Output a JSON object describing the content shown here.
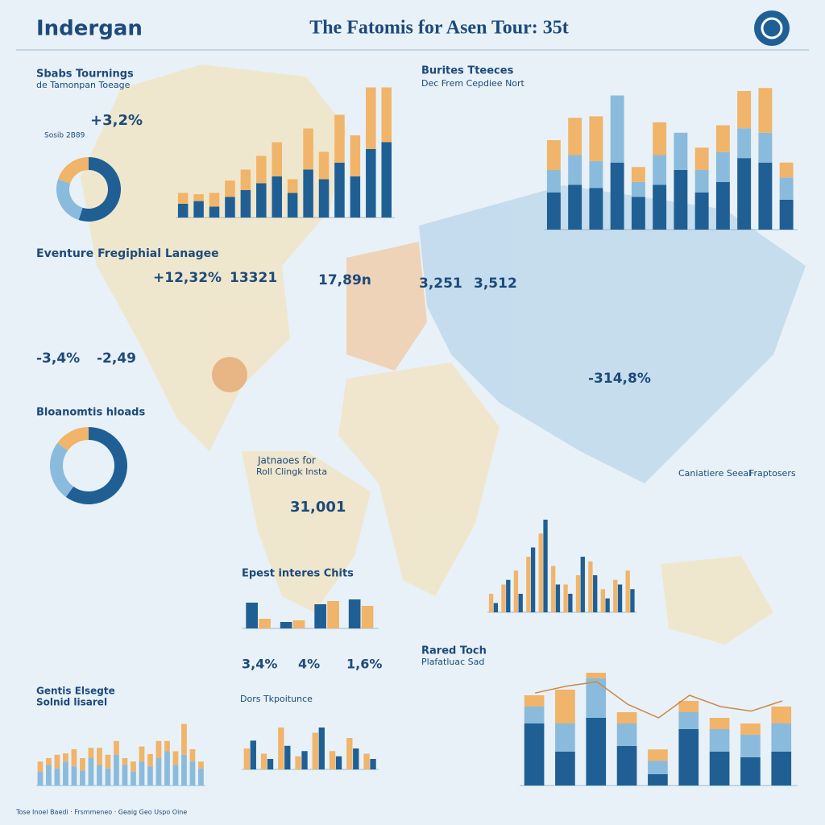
{
  "header": {
    "brand": "Indergan",
    "title": "The Fatomis for Asen Tour: 35t"
  },
  "labels": [
    "Sbabs Tournings",
    "de Tamonpan Toeage",
    "+3,2%",
    "Sosib 2B89",
    "Burites Tteeces",
    "Dec Frem Cepdiee Nort",
    "Eventure Fregiphial Lanagee",
    "+12,32%",
    "13321",
    "17,89n",
    "3,251",
    "3,512",
    "-3,4%",
    "-2,49",
    "Bloanomtis hloads",
    "Jatnaoes for",
    "Roll Clingk Insta",
    "31,001",
    "-314,8%",
    "Epest interes Chits",
    "3,4%",
    "4%",
    "1,6%",
    "Gentis Elsegte",
    "Solnid lisarel",
    "Rared Toch",
    "Plafatluac Sad",
    "Caniatiere Seeal",
    "Fraptosers",
    "Dors Tkpoitunce",
    "Tose Inoel Baedi · Frsmmeneo · Geaig Geo Uspo Oine"
  ],
  "charts": [
    {
      "type": "bar",
      "stacked": true,
      "ylim": [
        0,
        100
      ],
      "series": [
        {
          "color": "#1f5f94",
          "values": [
            10,
            12,
            8,
            15,
            20,
            25,
            30,
            18,
            35,
            28,
            40,
            30,
            50,
            55
          ]
        },
        {
          "color": "#f0b46a",
          "values": [
            8,
            5,
            10,
            12,
            15,
            20,
            25,
            10,
            30,
            20,
            35,
            30,
            45,
            40
          ]
        }
      ]
    },
    {
      "type": "bar",
      "stacked": true,
      "ylim": [
        0,
        100
      ],
      "series": [
        {
          "color": "#1f5f94",
          "values": [
            25,
            30,
            28,
            45,
            22,
            30,
            40,
            25,
            32,
            48,
            45,
            20
          ]
        },
        {
          "color": "#8bbbdc",
          "values": [
            15,
            20,
            18,
            45,
            10,
            20,
            25,
            15,
            20,
            20,
            20,
            15
          ]
        },
        {
          "color": "#f0b46a",
          "values": [
            20,
            25,
            30,
            0,
            10,
            22,
            0,
            15,
            18,
            25,
            30,
            10
          ]
        }
      ]
    },
    {
      "type": "bar",
      "stacked": false,
      "ylim": [
        0,
        100
      ],
      "series": [
        {
          "color": "#f0b46a",
          "values": [
            20,
            30,
            45,
            60,
            85,
            50,
            30,
            40,
            55,
            25,
            35,
            45
          ]
        },
        {
          "color": "#1f5f94",
          "values": [
            10,
            35,
            20,
            70,
            100,
            30,
            20,
            60,
            40,
            15,
            30,
            25
          ]
        }
      ]
    },
    {
      "type": "bar",
      "stacked": true,
      "ylim": [
        0,
        100
      ],
      "series": [
        {
          "color": "#8bbbdc",
          "values": [
            20,
            30,
            25,
            35,
            28,
            22,
            40,
            30,
            25,
            45,
            30,
            20,
            35,
            28,
            40,
            50,
            30,
            45,
            35,
            25
          ]
        },
        {
          "color": "#f0b46a",
          "values": [
            15,
            10,
            20,
            12,
            25,
            18,
            15,
            25,
            20,
            20,
            10,
            15,
            22,
            18,
            25,
            15,
            20,
            45,
            18,
            10
          ]
        }
      ]
    },
    {
      "type": "bar",
      "stacked": true,
      "ylim": [
        0,
        100
      ],
      "series": [
        {
          "color": "#1f5f94",
          "values": [
            55,
            30,
            60,
            35,
            10,
            50,
            30,
            25,
            30
          ]
        },
        {
          "color": "#8bbbdc",
          "values": [
            15,
            25,
            35,
            20,
            12,
            15,
            20,
            20,
            25
          ]
        },
        {
          "color": "#f0b46a",
          "values": [
            10,
            30,
            5,
            10,
            10,
            10,
            10,
            10,
            15
          ]
        },
        {
          "type": "line",
          "color": "#c98a4a",
          "values": [
            82,
            88,
            92,
            72,
            60,
            80,
            70,
            66,
            75
          ]
        }
      ]
    },
    {
      "type": "bar",
      "stacked": false,
      "ylim": [
        0,
        100
      ],
      "series": [
        {
          "color": "#1f5f94",
          "values": [
            80,
            20,
            75,
            90
          ]
        },
        {
          "color": "#f0b46a",
          "values": [
            30,
            25,
            85,
            70
          ]
        }
      ]
    },
    {
      "type": "bar",
      "stacked": false,
      "ylim": [
        0,
        100
      ],
      "series": [
        {
          "color": "#f0b46a",
          "values": [
            40,
            30,
            80,
            25,
            70,
            35,
            60,
            30
          ]
        },
        {
          "color": "#1f5f94",
          "values": [
            55,
            20,
            45,
            35,
            80,
            25,
            40,
            20
          ]
        }
      ]
    },
    {
      "type": "pie",
      "series": [
        {
          "colors": [
            "#1f5f94",
            "#8bbbdc",
            "#f0b46a"
          ],
          "values": [
            55,
            25,
            20
          ]
        }
      ]
    },
    {
      "type": "pie",
      "series": [
        {
          "colors": [
            "#1f5f94",
            "#8bbbdc",
            "#f0b46a"
          ],
          "values": [
            60,
            25,
            15
          ]
        }
      ]
    }
  ]
}
